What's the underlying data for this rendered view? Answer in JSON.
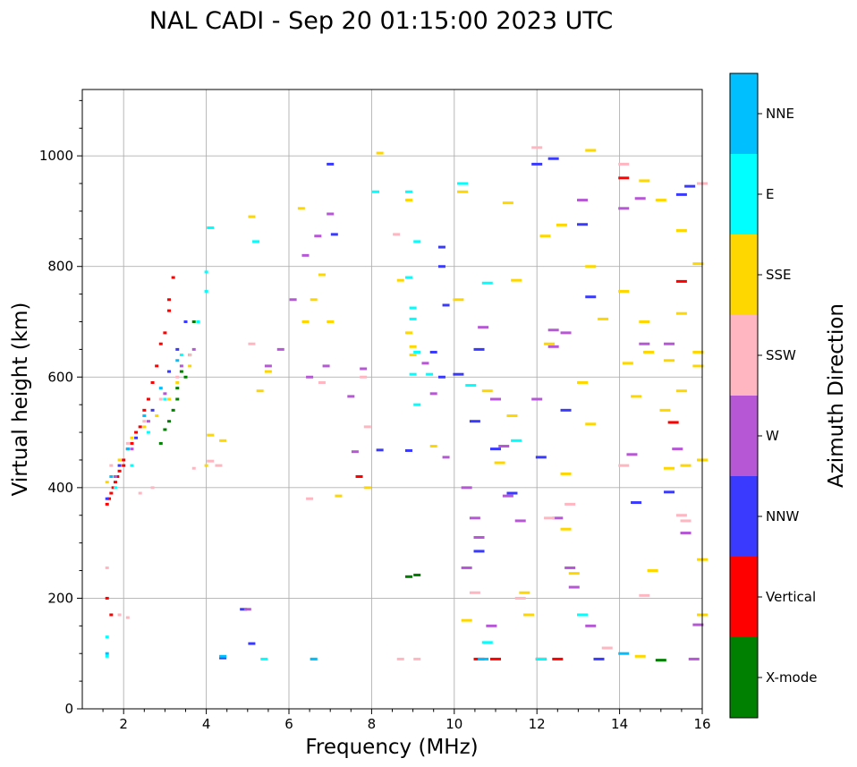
{
  "chart_data": {
    "type": "scatter",
    "title": "NAL CADI - Sep 20 01:15:00 2023 UTC",
    "xlabel": "Frequency (MHz)",
    "ylabel": "Virtual height (km)",
    "xlim": [
      1,
      16
    ],
    "ylim": [
      0,
      1120
    ],
    "xticks": [
      "2",
      "4",
      "6",
      "8",
      "10",
      "12",
      "14",
      "16"
    ],
    "yticks": [
      "0",
      "200",
      "400",
      "600",
      "800",
      "1000"
    ],
    "grid": true,
    "colorbar": {
      "label": "Azimuth Direction",
      "position": "right",
      "categories": [
        {
          "name": "X-mode",
          "color": "#008000"
        },
        {
          "name": "Vertical",
          "color": "#ff0000"
        },
        {
          "name": "NNW",
          "color": "#3a3aff"
        },
        {
          "name": "W",
          "color": "#b658d6"
        },
        {
          "name": "SSW",
          "color": "#ffb6c1"
        },
        {
          "name": "SSE",
          "color": "#ffd700"
        },
        {
          "name": "E",
          "color": "#00ffff"
        },
        {
          "name": "NNE",
          "color": "#00bfff"
        }
      ]
    },
    "series": [
      {
        "name": "X-mode",
        "points": [
          [
            2.9,
            480
          ],
          [
            3.1,
            520
          ],
          [
            3.3,
            560
          ],
          [
            3.5,
            600
          ],
          [
            3.7,
            700
          ],
          [
            3.2,
            540
          ],
          [
            3.4,
            610
          ],
          [
            3.6,
            640
          ],
          [
            3.0,
            505
          ],
          [
            3.3,
            580
          ],
          [
            8.9,
            239
          ],
          [
            9.1,
            242
          ],
          [
            15.0,
            88
          ]
        ]
      },
      {
        "name": "Vertical",
        "points": [
          [
            1.6,
            370
          ],
          [
            1.7,
            390
          ],
          [
            1.8,
            410
          ],
          [
            1.9,
            430
          ],
          [
            2.0,
            450
          ],
          [
            2.1,
            470
          ],
          [
            2.2,
            480
          ],
          [
            2.4,
            510
          ],
          [
            2.6,
            560
          ],
          [
            2.8,
            620
          ],
          [
            3.0,
            680
          ],
          [
            3.1,
            740
          ],
          [
            3.2,
            780
          ],
          [
            1.6,
            200
          ],
          [
            1.7,
            170
          ],
          [
            2.0,
            440
          ],
          [
            2.3,
            500
          ],
          [
            2.5,
            540
          ],
          [
            2.7,
            590
          ],
          [
            2.9,
            660
          ],
          [
            3.1,
            720
          ],
          [
            1.65,
            380
          ],
          [
            1.75,
            400
          ],
          [
            1.85,
            420
          ],
          [
            7.7,
            420
          ],
          [
            10.6,
            90
          ],
          [
            11.0,
            90
          ],
          [
            12.1,
            90
          ],
          [
            12.5,
            90
          ],
          [
            14.1,
            960
          ],
          [
            15.3,
            518
          ],
          [
            15.5,
            773
          ]
        ]
      },
      {
        "name": "NNW",
        "points": [
          [
            1.6,
            380
          ],
          [
            1.9,
            440
          ],
          [
            2.3,
            490
          ],
          [
            2.7,
            540
          ],
          [
            3.1,
            610
          ],
          [
            3.3,
            650
          ],
          [
            3.5,
            700
          ],
          [
            4.4,
            92
          ],
          [
            4.9,
            180
          ],
          [
            5.1,
            118
          ],
          [
            7.0,
            985
          ],
          [
            7.1,
            858
          ],
          [
            8.2,
            468
          ],
          [
            8.9,
            467
          ],
          [
            9.5,
            645
          ],
          [
            9.7,
            600
          ],
          [
            9.7,
            835
          ],
          [
            9.7,
            800
          ],
          [
            9.8,
            730
          ],
          [
            10.1,
            605
          ],
          [
            10.5,
            520
          ],
          [
            10.6,
            650
          ],
          [
            10.6,
            285
          ],
          [
            11.0,
            470
          ],
          [
            11.4,
            390
          ],
          [
            12.0,
            985
          ],
          [
            12.1,
            455
          ],
          [
            12.4,
            995
          ],
          [
            12.7,
            540
          ],
          [
            13.1,
            876
          ],
          [
            13.3,
            745
          ],
          [
            13.5,
            90
          ],
          [
            14.4,
            373
          ],
          [
            15.2,
            392
          ],
          [
            15.5,
            930
          ],
          [
            15.7,
            945
          ]
        ]
      },
      {
        "name": "W",
        "points": [
          [
            1.8,
            420
          ],
          [
            2.2,
            470
          ],
          [
            2.6,
            520
          ],
          [
            3.0,
            570
          ],
          [
            3.4,
            620
          ],
          [
            3.7,
            650
          ],
          [
            5.0,
            180
          ],
          [
            5.5,
            620
          ],
          [
            5.8,
            650
          ],
          [
            6.1,
            740
          ],
          [
            6.4,
            820
          ],
          [
            6.5,
            600
          ],
          [
            6.7,
            855
          ],
          [
            6.9,
            620
          ],
          [
            7.0,
            895
          ],
          [
            7.5,
            565
          ],
          [
            7.6,
            465
          ],
          [
            7.8,
            615
          ],
          [
            9.3,
            625
          ],
          [
            9.5,
            570
          ],
          [
            9.8,
            455
          ],
          [
            10.3,
            400
          ],
          [
            10.3,
            255
          ],
          [
            10.5,
            345
          ],
          [
            10.6,
            310
          ],
          [
            10.7,
            690
          ],
          [
            10.9,
            150
          ],
          [
            11.0,
            560
          ],
          [
            11.2,
            475
          ],
          [
            11.3,
            385
          ],
          [
            11.6,
            340
          ],
          [
            12.0,
            560
          ],
          [
            12.4,
            685
          ],
          [
            12.4,
            655
          ],
          [
            12.5,
            345
          ],
          [
            12.7,
            680
          ],
          [
            12.8,
            255
          ],
          [
            12.9,
            220
          ],
          [
            13.1,
            920
          ],
          [
            13.3,
            150
          ],
          [
            14.1,
            905
          ],
          [
            14.3,
            460
          ],
          [
            14.5,
            923
          ],
          [
            14.6,
            660
          ],
          [
            15.2,
            660
          ],
          [
            15.4,
            470
          ],
          [
            15.6,
            318
          ],
          [
            15.9,
            152
          ],
          [
            15.8,
            90
          ]
        ]
      },
      {
        "name": "SSW",
        "points": [
          [
            1.7,
            440
          ],
          [
            2.1,
            480
          ],
          [
            2.5,
            520
          ],
          [
            2.9,
            560
          ],
          [
            3.3,
            600
          ],
          [
            3.6,
            640
          ],
          [
            1.6,
            255
          ],
          [
            1.9,
            170
          ],
          [
            2.1,
            165
          ],
          [
            2.4,
            390
          ],
          [
            2.7,
            400
          ],
          [
            3.7,
            435
          ],
          [
            4.1,
            448
          ],
          [
            4.3,
            440
          ],
          [
            5.1,
            660
          ],
          [
            6.5,
            380
          ],
          [
            6.8,
            590
          ],
          [
            7.8,
            600
          ],
          [
            7.9,
            510
          ],
          [
            8.6,
            858
          ],
          [
            8.7,
            90
          ],
          [
            9.1,
            90
          ],
          [
            10.5,
            210
          ],
          [
            11.6,
            200
          ],
          [
            12.0,
            1015
          ],
          [
            12.3,
            345
          ],
          [
            12.8,
            370
          ],
          [
            13.7,
            110
          ],
          [
            14.1,
            985
          ],
          [
            14.1,
            440
          ],
          [
            14.6,
            205
          ],
          [
            15.5,
            350
          ],
          [
            15.6,
            340
          ],
          [
            16.0,
            950
          ]
        ]
      },
      {
        "name": "SSE",
        "points": [
          [
            1.6,
            410
          ],
          [
            1.9,
            450
          ],
          [
            2.2,
            490
          ],
          [
            2.5,
            510
          ],
          [
            2.8,
            530
          ],
          [
            3.1,
            560
          ],
          [
            3.3,
            590
          ],
          [
            3.6,
            620
          ],
          [
            4.0,
            440
          ],
          [
            4.1,
            495
          ],
          [
            4.4,
            485
          ],
          [
            5.1,
            890
          ],
          [
            5.3,
            575
          ],
          [
            5.5,
            610
          ],
          [
            6.3,
            905
          ],
          [
            6.4,
            700
          ],
          [
            6.6,
            740
          ],
          [
            6.8,
            785
          ],
          [
            7.0,
            700
          ],
          [
            7.2,
            385
          ],
          [
            7.9,
            400
          ],
          [
            8.2,
            1005
          ],
          [
            8.7,
            775
          ],
          [
            8.9,
            920
          ],
          [
            8.9,
            680
          ],
          [
            9.0,
            655
          ],
          [
            9.0,
            640
          ],
          [
            9.5,
            475
          ],
          [
            10.1,
            740
          ],
          [
            10.2,
            935
          ],
          [
            10.3,
            160
          ],
          [
            10.8,
            575
          ],
          [
            11.1,
            445
          ],
          [
            11.3,
            915
          ],
          [
            11.4,
            530
          ],
          [
            11.5,
            775
          ],
          [
            11.7,
            210
          ],
          [
            11.8,
            170
          ],
          [
            12.2,
            855
          ],
          [
            12.3,
            660
          ],
          [
            12.6,
            875
          ],
          [
            12.7,
            325
          ],
          [
            12.7,
            425
          ],
          [
            12.9,
            245
          ],
          [
            13.1,
            590
          ],
          [
            13.3,
            1010
          ],
          [
            13.3,
            800
          ],
          [
            13.3,
            515
          ],
          [
            13.6,
            705
          ],
          [
            14.1,
            755
          ],
          [
            14.2,
            625
          ],
          [
            14.4,
            565
          ],
          [
            14.5,
            95
          ],
          [
            14.6,
            955
          ],
          [
            14.6,
            700
          ],
          [
            14.7,
            645
          ],
          [
            14.8,
            250
          ],
          [
            15.0,
            920
          ],
          [
            15.1,
            540
          ],
          [
            15.2,
            630
          ],
          [
            15.2,
            435
          ],
          [
            15.5,
            865
          ],
          [
            15.5,
            715
          ],
          [
            15.5,
            575
          ],
          [
            15.6,
            440
          ],
          [
            15.9,
            805
          ],
          [
            15.9,
            645
          ],
          [
            15.9,
            620
          ],
          [
            16.0,
            450
          ],
          [
            16.0,
            270
          ],
          [
            16.0,
            170
          ]
        ]
      },
      {
        "name": "E",
        "points": [
          [
            1.6,
            130
          ],
          [
            1.6,
            95
          ],
          [
            1.8,
            400
          ],
          [
            2.2,
            440
          ],
          [
            2.6,
            500
          ],
          [
            3.0,
            560
          ],
          [
            3.4,
            640
          ],
          [
            3.8,
            700
          ],
          [
            4.0,
            790
          ],
          [
            4.0,
            755
          ],
          [
            4.1,
            870
          ],
          [
            5.2,
            845
          ],
          [
            5.4,
            90
          ],
          [
            6.6,
            90
          ],
          [
            8.1,
            935
          ],
          [
            8.9,
            935
          ],
          [
            8.9,
            780
          ],
          [
            9.0,
            725
          ],
          [
            9.0,
            705
          ],
          [
            9.0,
            605
          ],
          [
            9.1,
            845
          ],
          [
            9.1,
            645
          ],
          [
            9.1,
            550
          ],
          [
            9.4,
            605
          ],
          [
            10.2,
            950
          ],
          [
            10.4,
            585
          ],
          [
            10.8,
            770
          ],
          [
            10.8,
            120
          ],
          [
            11.5,
            485
          ],
          [
            12.1,
            90
          ],
          [
            13.1,
            170
          ]
        ]
      },
      {
        "name": "NNE",
        "points": [
          [
            1.6,
            100
          ],
          [
            1.7,
            420
          ],
          [
            2.1,
            470
          ],
          [
            2.5,
            530
          ],
          [
            2.9,
            580
          ],
          [
            3.3,
            630
          ],
          [
            4.4,
            95
          ],
          [
            6.6,
            90
          ],
          [
            10.7,
            90
          ],
          [
            14.1,
            100
          ]
        ]
      }
    ]
  }
}
